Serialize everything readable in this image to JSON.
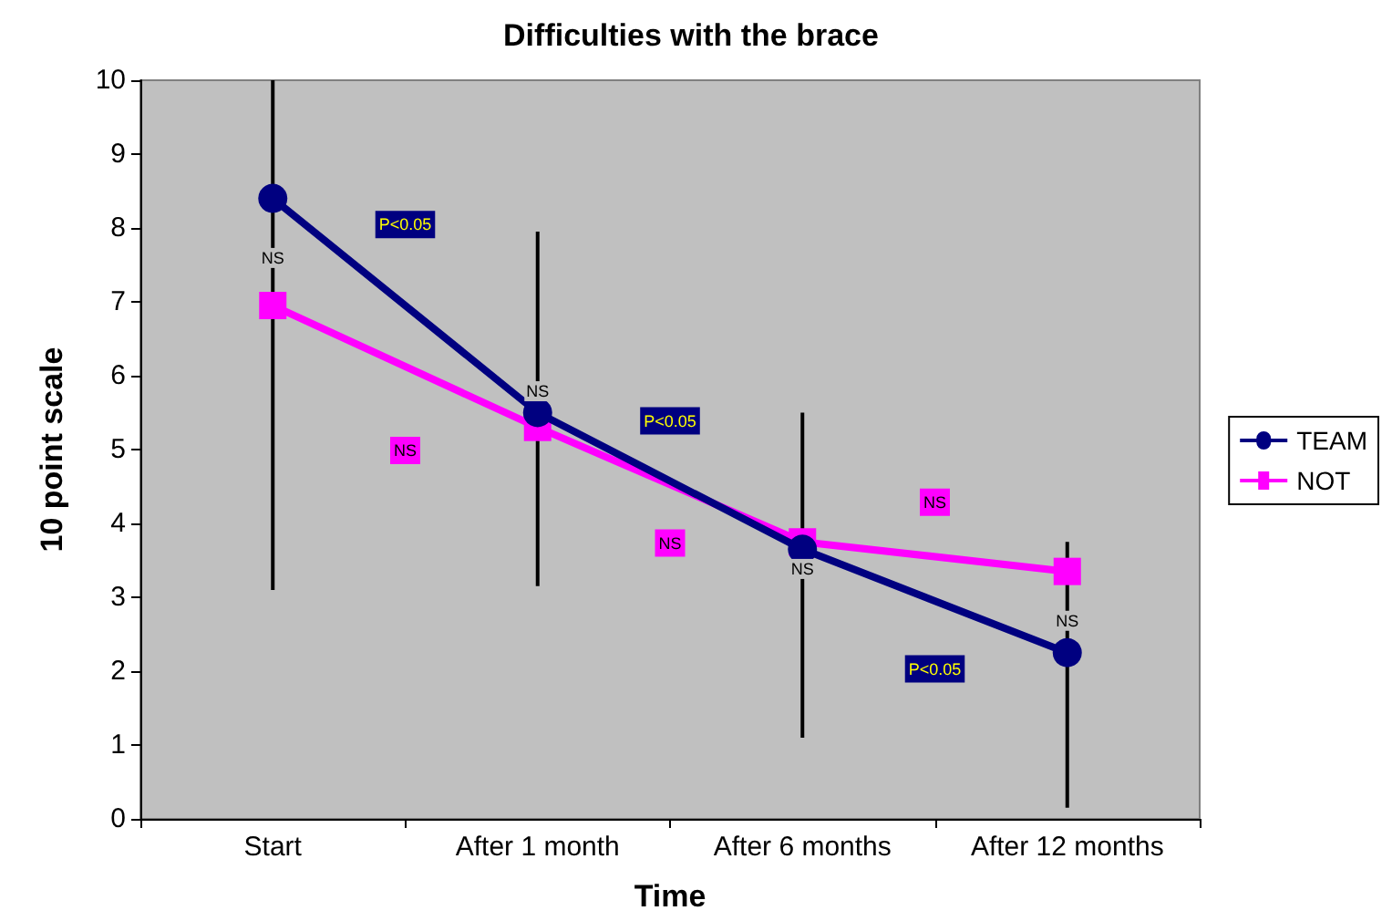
{
  "chart_data": {
    "type": "line",
    "title": "Difficulties with the brace",
    "xlabel": "Time",
    "ylabel": "10 point scale",
    "categories": [
      "Start",
      "After 1 month",
      "After 6 months",
      "After 12 months"
    ],
    "series": [
      {
        "name": "TEAM",
        "color": "#000080",
        "marker": "circle",
        "values": [
          8.4,
          5.5,
          3.65,
          2.25
        ],
        "errors": [
          [
            3.1,
            10
          ],
          [
            3.15,
            7.95
          ],
          [
            1.1,
            5.5
          ],
          [
            0.15,
            3.75
          ]
        ]
      },
      {
        "name": "NOT",
        "color": "#ff00ff",
        "marker": "square",
        "values": [
          6.95,
          5.3,
          3.75,
          3.35
        ]
      }
    ],
    "annotations": [
      {
        "text": "NS",
        "x": "Start",
        "y": 7.6
      },
      {
        "text": "NS",
        "x": "After 1 month",
        "y": 5.8
      },
      {
        "text": "NS",
        "x": "After 6 months",
        "y": 3.4
      },
      {
        "text": "NS",
        "x": "After 12 months",
        "y": 2.7
      },
      {
        "text": "P<0.05",
        "y": 8.05
      },
      {
        "text": "NS",
        "y": 5.0
      },
      {
        "text": "P<0.05",
        "y": 5.4
      },
      {
        "text": "NS",
        "y": 3.75
      },
      {
        "text": "P<0.05",
        "y": 2.05
      },
      {
        "text": "NS",
        "y": 4.3
      }
    ],
    "ylim": [
      0,
      10
    ],
    "yticks": [
      0,
      1,
      2,
      3,
      4,
      5,
      6,
      7,
      8,
      9,
      10
    ],
    "grid": false,
    "legend": "right"
  }
}
